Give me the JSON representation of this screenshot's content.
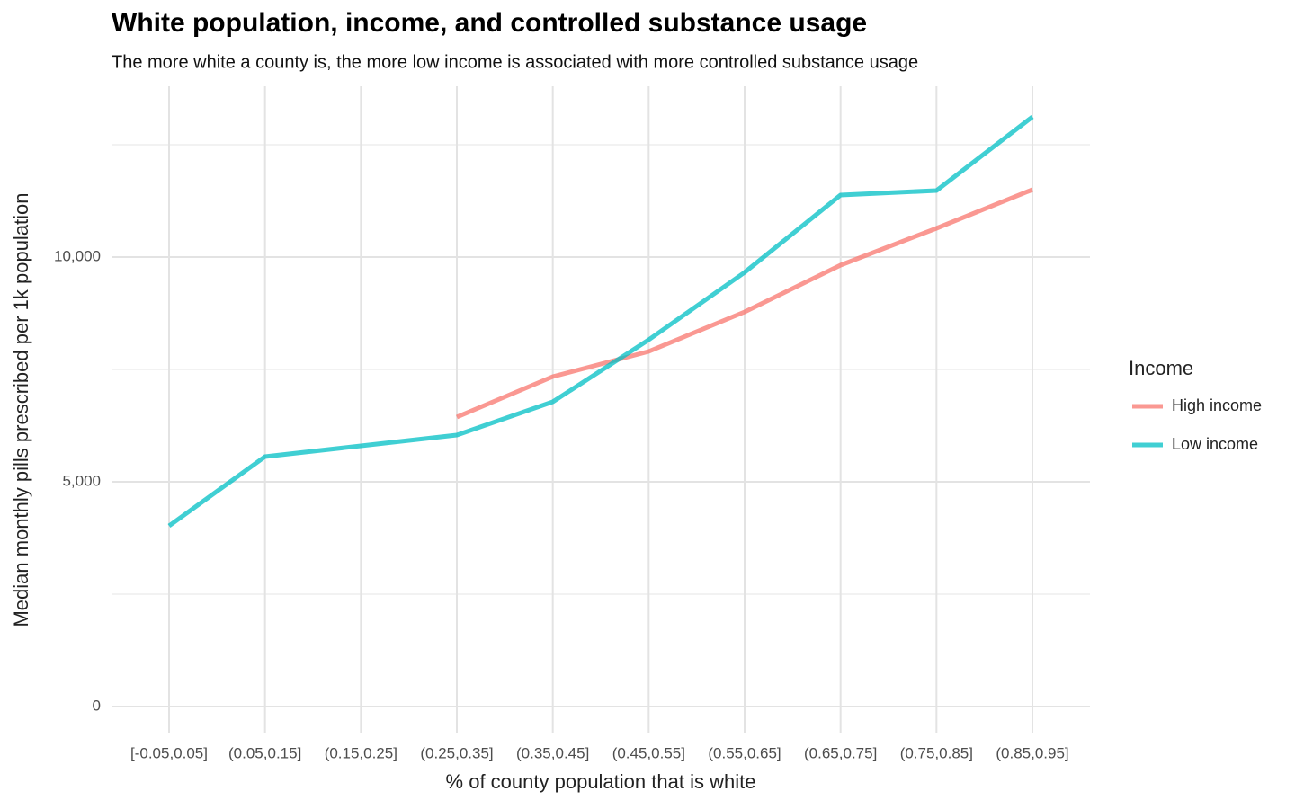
{
  "chart_data": {
    "type": "line",
    "title": "White population, income, and controlled substance usage",
    "subtitle": "The more white a county is, the more low income is associated with more controlled substance usage",
    "x_label": "% of county population that is white",
    "y_label": "Median monthly pills prescribed per 1k population",
    "categories": [
      "[-0.05,0.05]",
      "(0.05,0.15]",
      "(0.15,0.25]",
      "(0.25,0.35]",
      "(0.35,0.45]",
      "(0.45,0.55]",
      "(0.55,0.65]",
      "(0.65,0.75]",
      "(0.75,0.85]",
      "(0.85,0.95]"
    ],
    "series": [
      {
        "name": "High income",
        "color": "#F8766D",
        "values": [
          null,
          null,
          null,
          6440,
          7340,
          7900,
          8780,
          9820,
          10640,
          11500
        ]
      },
      {
        "name": "Low income",
        "color": "#00BFC4",
        "values": [
          4020,
          5560,
          5800,
          6040,
          6780,
          8160,
          9660,
          11380,
          11480,
          13120
        ]
      }
    ],
    "legend_title": "Income",
    "legend_position": "right",
    "ylim": [
      -580,
      13800
    ],
    "yticks": [
      0,
      {
        "value": 5000,
        "label": "5,000"
      },
      {
        "value": 10000,
        "label": "10,000"
      }
    ],
    "y_minor_grid": [
      2500,
      7500,
      12500
    ],
    "grid": true
  }
}
